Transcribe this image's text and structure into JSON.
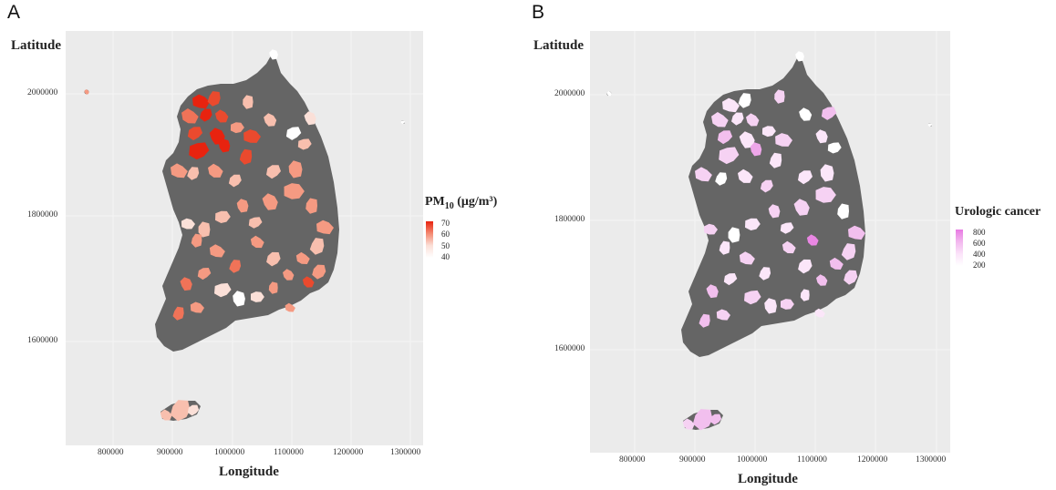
{
  "panels": [
    {
      "label": "A",
      "y_axis_title": "Latitude",
      "x_axis_title": "Longitude",
      "x_ticks": [
        "800000",
        "900000",
        "1000000",
        "1100000",
        "1200000",
        "1300000"
      ],
      "y_ticks": [
        "2000000",
        "1800000",
        "1600000"
      ],
      "legend": {
        "title_main": "PM",
        "title_sub": "10",
        "title_units": " (μg/m³)",
        "ticks": [
          "70",
          "60",
          "50",
          "40"
        ],
        "color_low": "#ffffff",
        "color_high": "#e8230f"
      },
      "fill_palette": [
        "#ffffff",
        "#fbe0d8",
        "#f8bfae",
        "#f59a82",
        "#f07358",
        "#ea4a2e",
        "#e8230f"
      ],
      "missing_color": "#656565",
      "background_color": "#ebebeb"
    },
    {
      "label": "B",
      "y_axis_title": "Latitude",
      "x_axis_title": "Longitude",
      "x_ticks": [
        "800000",
        "900000",
        "1000000",
        "1100000",
        "1200000",
        "1300000"
      ],
      "y_ticks": [
        "2000000",
        "1800000",
        "1600000"
      ],
      "legend": {
        "title_main": "Urologic cancer",
        "ticks": [
          "800",
          "600",
          "400",
          "200"
        ],
        "color_low": "#ffffff",
        "color_high": "#e87ae3"
      },
      "fill_palette": [
        "#ffffff",
        "#fbe6f9",
        "#f6d2f3",
        "#f2bfee",
        "#eea6e9",
        "#e987e3"
      ],
      "missing_color": "#656565",
      "background_color": "#ebebeb"
    }
  ]
}
